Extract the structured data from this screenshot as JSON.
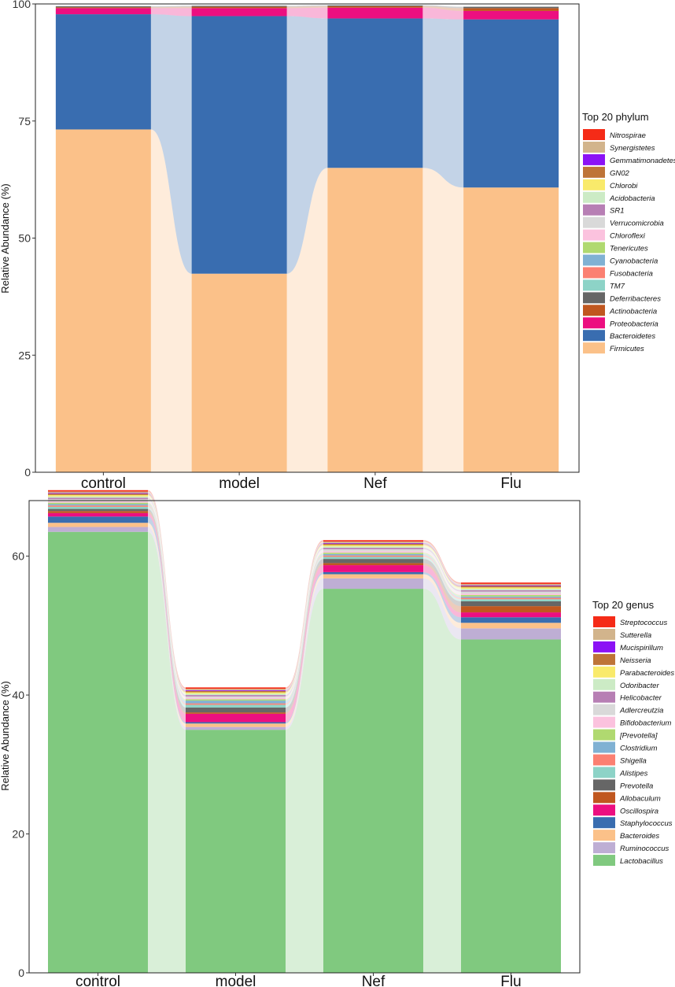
{
  "chart_data": [
    {
      "type": "bar",
      "stacked": true,
      "flow_connectors": true,
      "title": "",
      "xlabel": "",
      "ylabel": "Relative Abundance (%)",
      "ylim": [
        0,
        100
      ],
      "yticks": [
        0,
        25,
        50,
        75,
        100
      ],
      "categories": [
        "control",
        "model",
        "Nef",
        "Flu"
      ],
      "legend": {
        "title": "Top 20 phylum",
        "placement": "right",
        "entries": [
          {
            "name": "Nitrospirae",
            "color": "#F52B17"
          },
          {
            "name": "Synergistetes",
            "color": "#D2B48C"
          },
          {
            "name": "Gemmatimonadetes",
            "color": "#8B12F5"
          },
          {
            "name": "GN02",
            "color": "#BE7438"
          },
          {
            "name": "Chlorobi",
            "color": "#F9EA6B"
          },
          {
            "name": "Acidobacteria",
            "color": "#CCEBC5"
          },
          {
            "name": "SR1",
            "color": "#B77FB4"
          },
          {
            "name": "Verrucomicrobia",
            "color": "#D9D9D9"
          },
          {
            "name": "Chloroflexi",
            "color": "#FBC2DE"
          },
          {
            "name": "Tenericutes",
            "color": "#B0D970"
          },
          {
            "name": "Cyanobacteria",
            "color": "#80B1D3"
          },
          {
            "name": "Fusobacteria",
            "color": "#FB8072"
          },
          {
            "name": "TM7",
            "color": "#8DD3C7"
          },
          {
            "name": "Deferribacteres",
            "color": "#666666"
          },
          {
            "name": "Actinobacteria",
            "color": "#C0571F"
          },
          {
            "name": "Proteobacteria",
            "color": "#EC0F80"
          },
          {
            "name": "Bacteroidetes",
            "color": "#396DB0"
          },
          {
            "name": "Firmicutes",
            "color": "#FBC189"
          }
        ]
      },
      "series": [
        {
          "name": "Firmicutes",
          "values": [
            73.2,
            42.4,
            65.0,
            60.8
          ]
        },
        {
          "name": "Bacteroidetes",
          "values": [
            24.6,
            55.0,
            31.9,
            35.9
          ]
        },
        {
          "name": "Proteobacteria",
          "values": [
            1.3,
            1.7,
            2.3,
            1.8
          ]
        },
        {
          "name": "Actinobacteria",
          "values": [
            0.2,
            0.3,
            0.3,
            0.6
          ]
        },
        {
          "name": "Deferribacteres",
          "values": [
            0.2,
            0.2,
            0.2,
            0.3
          ]
        },
        {
          "name": "TM7",
          "values": [
            0.0,
            0.0,
            0.0,
            0.0
          ]
        },
        {
          "name": "Fusobacteria",
          "values": [
            0.0,
            0.0,
            0.0,
            0.0
          ]
        },
        {
          "name": "Cyanobacteria",
          "values": [
            0.0,
            0.0,
            0.0,
            0.0
          ]
        },
        {
          "name": "Tenericutes",
          "values": [
            0.0,
            0.0,
            0.0,
            0.0
          ]
        },
        {
          "name": "Chloroflexi",
          "values": [
            0.0,
            0.0,
            0.0,
            0.0
          ]
        },
        {
          "name": "Verrucomicrobia",
          "values": [
            0.0,
            0.0,
            0.0,
            0.0
          ]
        },
        {
          "name": "SR1",
          "values": [
            0.0,
            0.0,
            0.0,
            0.0
          ]
        },
        {
          "name": "Acidobacteria",
          "values": [
            0.0,
            0.0,
            0.0,
            0.0
          ]
        },
        {
          "name": "Chlorobi",
          "values": [
            0.0,
            0.0,
            0.0,
            0.0
          ]
        },
        {
          "name": "GN02",
          "values": [
            0.0,
            0.0,
            0.0,
            0.0
          ]
        },
        {
          "name": "Gemmatimonadetes",
          "values": [
            0.0,
            0.0,
            0.0,
            0.0
          ]
        },
        {
          "name": "Synergistetes",
          "values": [
            0.0,
            0.0,
            0.0,
            0.0
          ]
        },
        {
          "name": "Nitrospirae",
          "values": [
            0.0,
            0.0,
            0.0,
            0.0
          ]
        }
      ]
    },
    {
      "type": "bar",
      "stacked": true,
      "flow_connectors": true,
      "title": "",
      "xlabel": "",
      "ylabel": "Relative Abundance (%)",
      "ylim": [
        0,
        68
      ],
      "yticks": [
        0,
        20,
        40,
        60
      ],
      "categories": [
        "control",
        "model",
        "Nef",
        "Flu"
      ],
      "legend": {
        "title": "Top 20 genus",
        "placement": "right",
        "entries": [
          {
            "name": "Streptococcus",
            "color": "#F52B17"
          },
          {
            "name": "Sutterella",
            "color": "#D2B48C"
          },
          {
            "name": "Mucispirillum",
            "color": "#8B12F5"
          },
          {
            "name": "Neisseria",
            "color": "#BE7438"
          },
          {
            "name": "Parabacteroides",
            "color": "#F9EA6B"
          },
          {
            "name": "Odoribacter",
            "color": "#CCEBC5"
          },
          {
            "name": "Helicobacter",
            "color": "#B77FB4"
          },
          {
            "name": "Adlercreutzia",
            "color": "#D9D9D9"
          },
          {
            "name": "Bifidobacterium",
            "color": "#FBC2DE"
          },
          {
            "name": "[Prevotella]",
            "color": "#B0D970"
          },
          {
            "name": "Clostridium",
            "color": "#80B1D3"
          },
          {
            "name": "Shigella",
            "color": "#FB8072"
          },
          {
            "name": "Alistipes",
            "color": "#8DD3C7"
          },
          {
            "name": "Prevotella",
            "color": "#666666"
          },
          {
            "name": "Allobaculum",
            "color": "#C0571F"
          },
          {
            "name": "Oscillospira",
            "color": "#EC0F80"
          },
          {
            "name": "Staphylococcus",
            "color": "#396DB0"
          },
          {
            "name": "Bacteroides",
            "color": "#FBC189"
          },
          {
            "name": "Ruminococcus",
            "color": "#BEAED4"
          },
          {
            "name": "Lactobacillus",
            "color": "#80C97F"
          }
        ]
      },
      "series": [
        {
          "name": "Lactobacillus",
          "values": [
            63.5,
            35.0,
            55.3,
            48.0
          ]
        },
        {
          "name": "Ruminococcus",
          "values": [
            0.7,
            0.4,
            1.5,
            1.6
          ]
        },
        {
          "name": "Bacteroides",
          "values": [
            0.6,
            0.5,
            0.6,
            0.8
          ]
        },
        {
          "name": "Staphylococcus",
          "values": [
            0.9,
            0.2,
            0.3,
            0.8
          ]
        },
        {
          "name": "Oscillospira",
          "values": [
            0.5,
            1.2,
            1.0,
            0.7
          ]
        },
        {
          "name": "Allobaculum",
          "values": [
            0.3,
            0.2,
            0.3,
            0.9
          ]
        },
        {
          "name": "Prevotella",
          "values": [
            0.3,
            0.7,
            0.6,
            0.7
          ]
        },
        {
          "name": "Alistipes",
          "values": [
            0.3,
            0.4,
            0.3,
            0.3
          ]
        },
        {
          "name": "Shigella",
          "values": [
            0.2,
            0.2,
            0.2,
            0.2
          ]
        },
        {
          "name": "Clostridium",
          "values": [
            0.2,
            0.4,
            0.2,
            0.2
          ]
        },
        {
          "name": "[Prevotella]",
          "values": [
            0.2,
            0.2,
            0.2,
            0.2
          ]
        },
        {
          "name": "Bifidobacterium",
          "values": [
            0.2,
            0.2,
            0.2,
            0.2
          ]
        },
        {
          "name": "Adlercreutzia",
          "values": [
            0.3,
            0.2,
            0.3,
            0.3
          ]
        },
        {
          "name": "Helicobacter",
          "values": [
            0.2,
            0.2,
            0.2,
            0.2
          ]
        },
        {
          "name": "Odoribacter",
          "values": [
            0.2,
            0.2,
            0.2,
            0.2
          ]
        },
        {
          "name": "Parabacteroides",
          "values": [
            0.2,
            0.2,
            0.2,
            0.2
          ]
        },
        {
          "name": "Neisseria",
          "values": [
            0.2,
            0.2,
            0.2,
            0.2
          ]
        },
        {
          "name": "Mucispirillum",
          "values": [
            0.1,
            0.1,
            0.1,
            0.1
          ]
        },
        {
          "name": "Sutterella",
          "values": [
            0.2,
            0.2,
            0.2,
            0.2
          ]
        },
        {
          "name": "Streptococcus",
          "values": [
            0.2,
            0.2,
            0.2,
            0.2
          ]
        }
      ]
    }
  ]
}
